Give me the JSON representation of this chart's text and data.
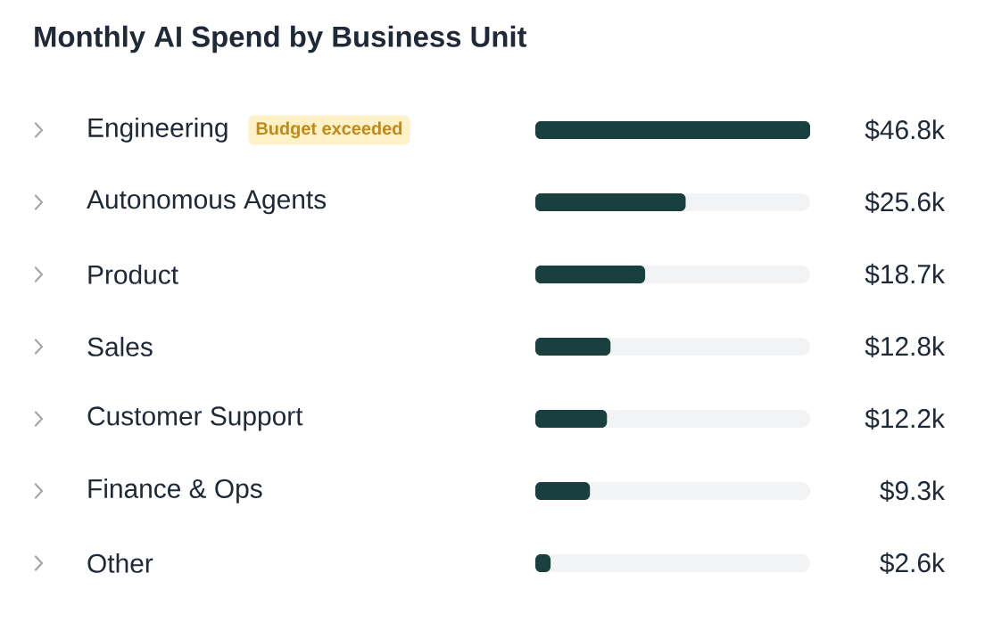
{
  "chart_data": {
    "type": "bar",
    "orientation": "horizontal",
    "title": "Monthly AI Spend by Business Unit",
    "categories": [
      "Engineering",
      "Autonomous Agents",
      "Product",
      "Sales",
      "Customer Support",
      "Finance & Ops",
      "Other"
    ],
    "values": [
      46.8,
      25.6,
      18.7,
      12.8,
      12.2,
      9.3,
      2.6
    ],
    "value_labels": [
      "$46.8k",
      "$25.6k",
      "$18.7k",
      "$12.8k",
      "$12.2k",
      "$9.3k",
      "$2.6k"
    ],
    "color": "#1a3f3f",
    "annotations": [
      "Budget exceeded"
    ]
  }
}
